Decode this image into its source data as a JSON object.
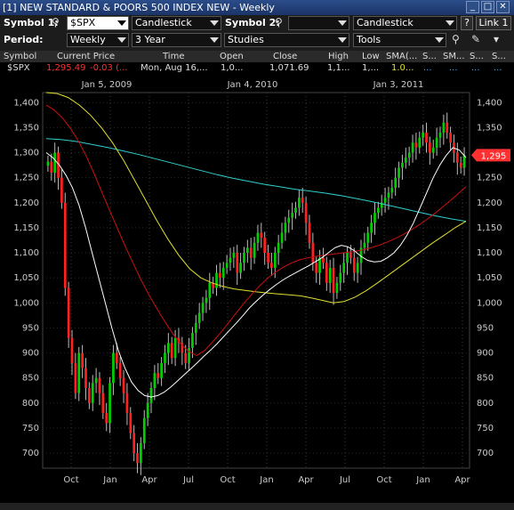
{
  "window": {
    "title": "[1] NEW STANDARD & POORS 500 INDEX NEW - Weekly"
  },
  "toolbar": {
    "symbol1_label": "Symbol 1:",
    "symbol1_value": "$SPX",
    "chart_type_1": "Candlestick",
    "symbol2_label": "Symbol 2:",
    "symbol2_value": "",
    "chart_type_2": "Candlestick",
    "help_label": "?",
    "link_label": "Link 1",
    "period_label": "Period:",
    "period_value": "Weekly",
    "range_value": "3 Year",
    "studies_value": "Studies",
    "tools_value": "Tools"
  },
  "quote": {
    "headers": [
      "Symbol",
      "Current Price",
      "Time",
      "Open",
      "Close",
      "High",
      "Low",
      "SMA(...",
      "S...",
      "SM...",
      "S...",
      "S..."
    ],
    "row": {
      "symbol": "$SPX",
      "price": "1,295.49",
      "change": "-0.03 (...",
      "time": "Mon, Aug 16,...",
      "open": "1,0...",
      "close": "1,071.69",
      "high": "1,1...",
      "low": "1,...",
      "sma": "1.0...",
      "s1": "...",
      "s2": "...",
      "s3": "...",
      "s4": "..."
    }
  },
  "colors": {
    "up": "#00d000",
    "down": "#ff2020",
    "sma_white": "#ffffff",
    "sma_red": "#cc1010",
    "sma_yellow": "#e0e030",
    "sma_cyan": "#30d0d0",
    "price_tag": "#ff3030"
  },
  "chart_data": {
    "type": "candlestick",
    "symbol": "$SPX",
    "period": "Weekly",
    "ylim": [
      670,
      1420
    ],
    "yticks": [
      700,
      750,
      800,
      850,
      900,
      950,
      1000,
      1050,
      1100,
      1150,
      1200,
      1250,
      1300,
      1350,
      1400
    ],
    "ytick_labels": [
      "700",
      "750",
      "800",
      "850",
      "900",
      "950",
      "1,000",
      "1,050",
      "1,100",
      "1,150",
      "1,200",
      "1,250",
      "1,300",
      "1,350",
      "1,400"
    ],
    "last_price_label": "1,295",
    "last_price": 1295,
    "top_axis_labels": [
      "Jan 5, 2009",
      "Jan 4, 2010",
      "Jan 3, 2011"
    ],
    "bottom_axis_labels": [
      "Oct",
      "Jan",
      "Apr",
      "Jul",
      "Oct",
      "Jan",
      "Apr",
      "Jul",
      "Oct",
      "Jan",
      "Apr"
    ],
    "closes": [
      1282,
      1260,
      1300,
      1250,
      1200,
      1030,
      930,
      880,
      820,
      900,
      870,
      830,
      800,
      840,
      850,
      820,
      780,
      760,
      840,
      900,
      880,
      850,
      820,
      780,
      740,
      700,
      680,
      720,
      770,
      800,
      830,
      860,
      850,
      880,
      900,
      920,
      890,
      930,
      920,
      900,
      880,
      910,
      940,
      960,
      980,
      1000,
      1010,
      1040,
      1030,
      1060,
      1050,
      1070,
      1080,
      1090,
      1100,
      1060,
      1080,
      1100,
      1110,
      1090,
      1120,
      1140,
      1130,
      1100,
      1080,
      1070,
      1100,
      1120,
      1140,
      1160,
      1170,
      1180,
      1190,
      1210,
      1200,
      1160,
      1120,
      1080,
      1060,
      1090,
      1080,
      1040,
      1070,
      1020,
      1040,
      1060,
      1080,
      1100,
      1090,
      1060,
      1080,
      1110,
      1120,
      1140,
      1160,
      1180,
      1190,
      1200,
      1210,
      1220,
      1230,
      1250,
      1270,
      1280,
      1290,
      1300,
      1320,
      1310,
      1330,
      1340,
      1320,
      1300,
      1310,
      1330,
      1340,
      1360,
      1340,
      1320,
      1300,
      1280,
      1270,
      1295
    ],
    "sma_white": [
      1300,
      1290,
      1275,
      1255,
      1230,
      1195,
      1150,
      1100,
      1050,
      1000,
      950,
      905,
      870,
      842,
      825,
      815,
      812,
      815,
      822,
      832,
      844,
      856,
      868,
      880,
      893,
      905,
      918,
      932,
      946,
      960,
      975,
      990,
      1003,
      1015,
      1026,
      1036,
      1045,
      1053,
      1060,
      1067,
      1074,
      1082,
      1090,
      1100,
      1110,
      1115,
      1112,
      1104,
      1093,
      1085,
      1082,
      1083,
      1090,
      1100,
      1115,
      1135,
      1160,
      1190,
      1220,
      1250,
      1275,
      1295,
      1310,
      1305,
      1290
    ],
    "sma_red": [
      1395,
      1385,
      1370,
      1350,
      1325,
      1295,
      1260,
      1222,
      1185,
      1148,
      1112,
      1078,
      1045,
      1015,
      988,
      962,
      938,
      918,
      903,
      895,
      905,
      922,
      940,
      960,
      980,
      1000,
      1018,
      1035,
      1050,
      1062,
      1072,
      1080,
      1086,
      1090,
      1093,
      1095,
      1097,
      1099,
      1101,
      1103,
      1106,
      1110,
      1115,
      1121,
      1128,
      1136,
      1145,
      1155,
      1166,
      1178,
      1191,
      1204,
      1218,
      1232
    ],
    "sma_yellow": [
      1420,
      1418,
      1410,
      1395,
      1375,
      1350,
      1320,
      1285,
      1245,
      1205,
      1165,
      1128,
      1095,
      1068,
      1050,
      1040,
      1033,
      1028,
      1025,
      1022,
      1020,
      1018,
      1016,
      1014,
      1010,
      1005,
      1000,
      1003,
      1012,
      1025,
      1040,
      1056,
      1072,
      1088,
      1104,
      1120,
      1135,
      1150,
      1163
    ],
    "sma_cyan": [
      1328,
      1326,
      1322,
      1316,
      1310,
      1303,
      1296,
      1288,
      1280,
      1272,
      1264,
      1256,
      1249,
      1243,
      1237,
      1232,
      1227,
      1223,
      1219,
      1214,
      1208,
      1202,
      1195,
      1188,
      1181,
      1174,
      1168,
      1163
    ]
  }
}
